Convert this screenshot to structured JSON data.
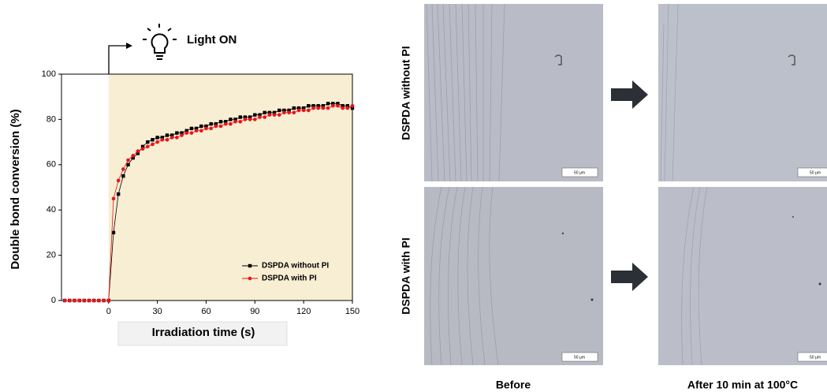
{
  "chart_data": {
    "type": "line",
    "annotation": "Light ON",
    "xlabel": "Irradiation time (s)",
    "ylabel": "Double bond conversion (%)",
    "xlim": [
      -29,
      150
    ],
    "xticks": [
      0,
      30,
      60,
      90,
      120,
      150
    ],
    "ylim": [
      0,
      100
    ],
    "yticks": [
      0,
      20,
      40,
      60,
      80,
      100
    ],
    "legend": "lower right",
    "x": [
      -27,
      -24,
      -21,
      -18,
      -15,
      -12,
      -9,
      -6,
      -3,
      0,
      3,
      6,
      9,
      12,
      15,
      18,
      21,
      24,
      27,
      30,
      33,
      36,
      39,
      42,
      45,
      48,
      51,
      54,
      57,
      60,
      63,
      66,
      69,
      72,
      75,
      78,
      81,
      84,
      87,
      90,
      93,
      96,
      99,
      102,
      105,
      108,
      111,
      114,
      117,
      120,
      123,
      126,
      129,
      132,
      135,
      138,
      141,
      144,
      147,
      150
    ],
    "series": [
      {
        "name": "DSPDA without PI",
        "color": "#000000",
        "marker": "square",
        "values": [
          0,
          0,
          0,
          0,
          0,
          0,
          0,
          0,
          0,
          0,
          30,
          47,
          55,
          60,
          63,
          65,
          68,
          70,
          71,
          72,
          72,
          73,
          73,
          74,
          74,
          75,
          76,
          76,
          77,
          77,
          78,
          78,
          79,
          79,
          80,
          80,
          81,
          81,
          81,
          82,
          82,
          83,
          83,
          83,
          84,
          84,
          84,
          85,
          85,
          85,
          86,
          86,
          86,
          86,
          87,
          87,
          87,
          86,
          86,
          85
        ]
      },
      {
        "name": "DSPDA with PI",
        "color": "#e8141b",
        "marker": "circle",
        "values": [
          0,
          0,
          0,
          0,
          0,
          0,
          0,
          0,
          0,
          0,
          45,
          53,
          58,
          62,
          64,
          66,
          67,
          68,
          69,
          70,
          71,
          71,
          72,
          72,
          73,
          74,
          74,
          75,
          75,
          76,
          76,
          77,
          77,
          78,
          78,
          79,
          79,
          80,
          80,
          80,
          81,
          81,
          82,
          82,
          82,
          83,
          83,
          83,
          84,
          84,
          84,
          85,
          85,
          85,
          85,
          86,
          86,
          85,
          85,
          86
        ]
      }
    ]
  },
  "micrographs": {
    "rows": [
      "DSPDA without PI",
      "DSPDA with PI"
    ],
    "columns": [
      "Before",
      "After 10 min at 100°C"
    ],
    "scale_bar": "50 μm"
  }
}
